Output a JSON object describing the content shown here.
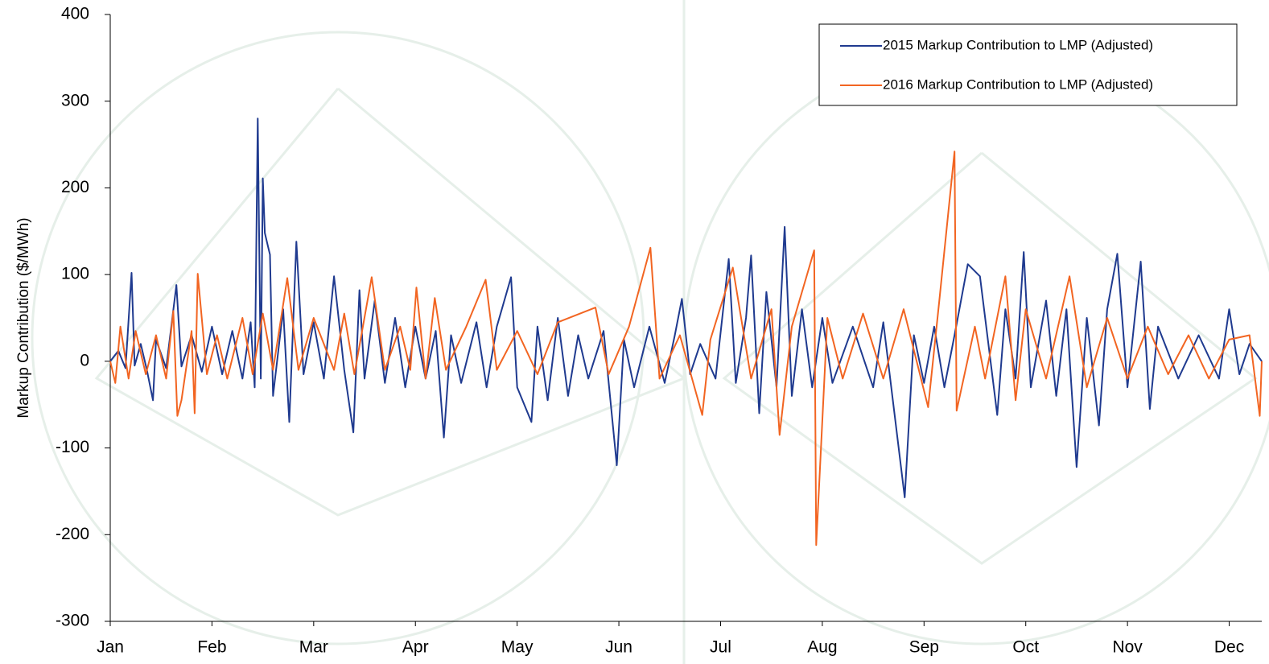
{
  "chart_data": {
    "type": "line",
    "y_label": "Markup Contribution  ($/MWh)",
    "xlim": [
      0,
      11.32
    ],
    "xticks": [
      {
        "value": 0,
        "label": "Jan"
      },
      {
        "value": 1,
        "label": "Feb"
      },
      {
        "value": 2,
        "label": "Mar"
      },
      {
        "value": 3,
        "label": "Apr"
      },
      {
        "value": 4,
        "label": "May"
      },
      {
        "value": 5,
        "label": "Jun"
      },
      {
        "value": 6,
        "label": "Jul"
      },
      {
        "value": 7,
        "label": "Aug"
      },
      {
        "value": 8,
        "label": "Sep"
      },
      {
        "value": 9,
        "label": "Oct"
      },
      {
        "value": 10,
        "label": "Nov"
      },
      {
        "value": 11,
        "label": "Dec"
      }
    ],
    "ylim": [
      -300,
      400
    ],
    "yticks": [
      -300,
      -200,
      -100,
      0,
      100,
      200,
      300,
      400
    ],
    "legend": "upper right",
    "series": [
      {
        "name": "2015 Markup Contribution to LMP (Adjusted)",
        "color": "#1f3a8f",
        "x": [
          0,
          0.08,
          0.15,
          0.21,
          0.24,
          0.3,
          0.36,
          0.42,
          0.45,
          0.55,
          0.65,
          0.7,
          0.8,
          0.9,
          1.0,
          1.1,
          1.2,
          1.3,
          1.38,
          1.42,
          1.45,
          1.48,
          1.5,
          1.52,
          1.55,
          1.57,
          1.6,
          1.7,
          1.76,
          1.83,
          1.9,
          2.0,
          2.1,
          2.2,
          2.3,
          2.39,
          2.45,
          2.5,
          2.6,
          2.7,
          2.8,
          2.9,
          3.0,
          3.1,
          3.2,
          3.28,
          3.35,
          3.45,
          3.6,
          3.7,
          3.8,
          3.94,
          4.0,
          4.14,
          4.2,
          4.3,
          4.4,
          4.5,
          4.6,
          4.7,
          4.85,
          4.98,
          5.05,
          5.15,
          5.3,
          5.45,
          5.55,
          5.62,
          5.7,
          5.8,
          5.95,
          6.08,
          6.15,
          6.25,
          6.3,
          6.38,
          6.45,
          6.55,
          6.63,
          6.7,
          6.8,
          6.9,
          7.0,
          7.1,
          7.3,
          7.5,
          7.6,
          7.81,
          7.9,
          8.0,
          8.1,
          8.2,
          8.3,
          8.43,
          8.55,
          8.72,
          8.8,
          8.9,
          8.98,
          9.05,
          9.2,
          9.3,
          9.4,
          9.5,
          9.6,
          9.72,
          9.8,
          9.9,
          10.0,
          10.13,
          10.22,
          10.3,
          10.5,
          10.7,
          10.9,
          11.0,
          11.1,
          11.2,
          11.32
        ],
        "values": [
          0,
          12,
          -8,
          102,
          -5,
          20,
          -10,
          -45,
          25,
          -8,
          88,
          -6,
          30,
          -12,
          40,
          -15,
          35,
          -20,
          45,
          -30,
          280,
          -20,
          211,
          148,
          133,
          123,
          -40,
          60,
          -70,
          138,
          -15,
          45,
          -20,
          98,
          -10,
          -82,
          82,
          -20,
          70,
          -25,
          50,
          -30,
          40,
          -20,
          35,
          -88,
          30,
          -25,
          45,
          -30,
          40,
          97,
          -30,
          -70,
          40,
          -45,
          50,
          -40,
          30,
          -20,
          35,
          -120,
          25,
          -30,
          40,
          -25,
          30,
          72,
          -15,
          20,
          -20,
          118,
          -25,
          50,
          122,
          -60,
          80,
          -30,
          155,
          -40,
          60,
          -30,
          50,
          -25,
          40,
          -30,
          45,
          -157,
          30,
          -25,
          40,
          -30,
          30,
          112,
          98,
          -62,
          60,
          -20,
          126,
          -30,
          70,
          -40,
          60,
          -122,
          50,
          -74,
          60,
          124,
          -30,
          115,
          -55,
          40,
          -20,
          30,
          -20,
          60,
          -15,
          20,
          0
        ]
      },
      {
        "name": "2016 Markup Contribution to LMP (Adjusted)",
        "color": "#f26522",
        "x": [
          0,
          0.05,
          0.1,
          0.18,
          0.25,
          0.35,
          0.45,
          0.55,
          0.62,
          0.66,
          0.7,
          0.8,
          0.83,
          0.86,
          0.95,
          1.05,
          1.15,
          1.3,
          1.4,
          1.5,
          1.6,
          1.74,
          1.85,
          2.0,
          2.2,
          2.3,
          2.4,
          2.57,
          2.7,
          2.85,
          2.95,
          3.01,
          3.1,
          3.19,
          3.3,
          3.5,
          3.69,
          3.8,
          4.0,
          4.2,
          4.4,
          4.77,
          4.9,
          5.1,
          5.31,
          5.4,
          5.6,
          5.82,
          5.9,
          6.12,
          6.3,
          6.5,
          6.58,
          6.7,
          6.92,
          6.94,
          7.05,
          7.2,
          7.4,
          7.6,
          7.8,
          8.04,
          8.15,
          8.3,
          8.32,
          8.5,
          8.6,
          8.8,
          8.9,
          9.0,
          9.2,
          9.43,
          9.6,
          9.8,
          10.0,
          10.2,
          10.4,
          10.6,
          10.8,
          11.0,
          11.2,
          11.3,
          11.32
        ],
        "values": [
          0,
          -25,
          40,
          -20,
          35,
          -15,
          30,
          -20,
          58,
          -63,
          -45,
          35,
          -60,
          101,
          -15,
          30,
          -20,
          50,
          -15,
          55,
          -10,
          96,
          -10,
          50,
          -10,
          55,
          -15,
          97,
          -10,
          40,
          -10,
          85,
          -20,
          73,
          -10,
          40,
          94,
          -10,
          35,
          -15,
          45,
          62,
          -15,
          40,
          131,
          -20,
          30,
          -62,
          25,
          108,
          -20,
          60,
          -85,
          40,
          128,
          -212,
          50,
          -20,
          55,
          -20,
          60,
          -53,
          70,
          242,
          -57,
          40,
          -20,
          98,
          -45,
          60,
          -20,
          98,
          -30,
          50,
          -20,
          40,
          -15,
          30,
          -20,
          25,
          30,
          -63,
          0
        ]
      }
    ]
  }
}
